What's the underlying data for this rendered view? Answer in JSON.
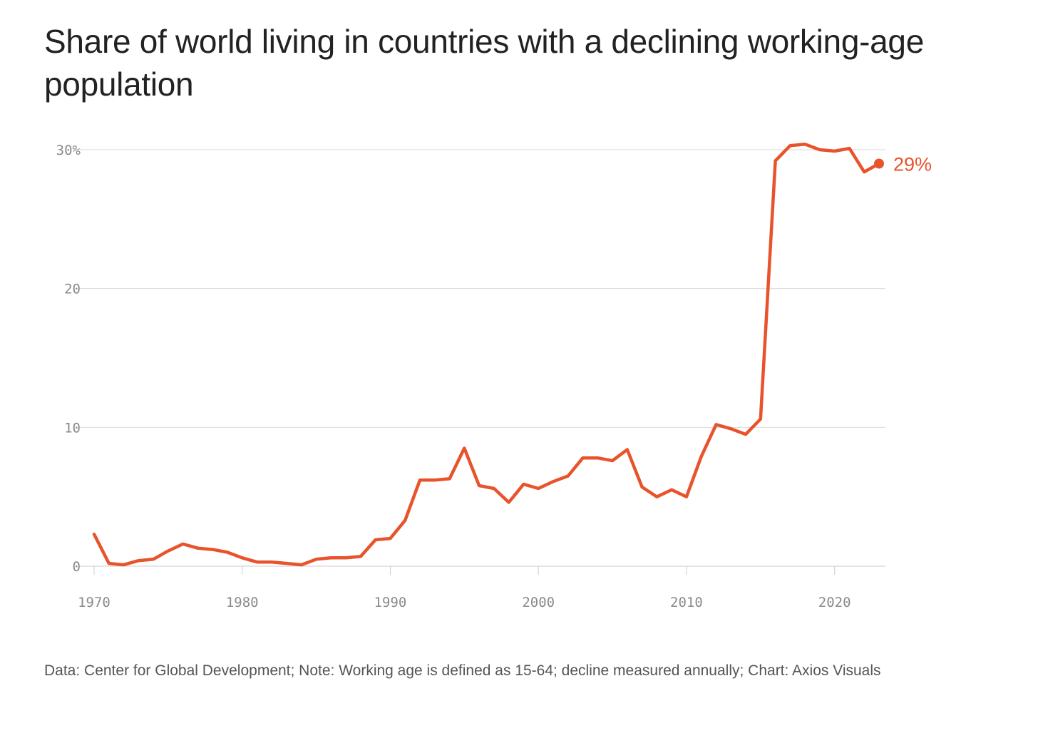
{
  "title": "Share of world living in countries with a declining working-age population",
  "footer": "Data: Center for Global Development; Note: Working age is defined as 15-64; decline measured annually; Chart: Axios Visuals",
  "colors": {
    "line": "#e8532b",
    "grid": "#d9d9d9",
    "axis": "#cccccc"
  },
  "chart_data": {
    "type": "line",
    "title": "Share of world living in countries with a declining working-age population",
    "xlabel": "",
    "ylabel": "",
    "xlim": [
      1970,
      2023
    ],
    "ylim": [
      0,
      30
    ],
    "grid": true,
    "y_ticks": [
      {
        "value": 0,
        "label": "0"
      },
      {
        "value": 10,
        "label": "10"
      },
      {
        "value": 20,
        "label": "20"
      },
      {
        "value": 30,
        "label": "30%"
      }
    ],
    "x_ticks": [
      {
        "value": 1970,
        "label": "1970"
      },
      {
        "value": 1980,
        "label": "1980"
      },
      {
        "value": 1990,
        "label": "1990"
      },
      {
        "value": 2000,
        "label": "2000"
      },
      {
        "value": 2010,
        "label": "2010"
      },
      {
        "value": 2020,
        "label": "2020"
      }
    ],
    "end_label": "29%",
    "x": [
      1970,
      1971,
      1972,
      1973,
      1974,
      1975,
      1976,
      1977,
      1978,
      1979,
      1980,
      1981,
      1982,
      1983,
      1984,
      1985,
      1986,
      1987,
      1988,
      1989,
      1990,
      1991,
      1992,
      1993,
      1994,
      1995,
      1996,
      1997,
      1998,
      1999,
      2000,
      2001,
      2002,
      2003,
      2004,
      2005,
      2006,
      2007,
      2008,
      2009,
      2010,
      2011,
      2012,
      2013,
      2014,
      2015,
      2016,
      2017,
      2018,
      2019,
      2020,
      2021,
      2022,
      2023
    ],
    "y": [
      2.3,
      0.2,
      0.1,
      0.4,
      0.5,
      1.1,
      1.6,
      1.3,
      1.2,
      1.0,
      0.6,
      0.3,
      0.3,
      0.2,
      0.1,
      0.5,
      0.6,
      0.6,
      0.7,
      1.9,
      2.0,
      3.3,
      6.2,
      6.2,
      6.3,
      8.5,
      5.8,
      5.6,
      4.6,
      5.9,
      5.6,
      6.1,
      6.5,
      7.8,
      7.8,
      7.6,
      8.4,
      5.7,
      5.0,
      5.5,
      5.0,
      7.9,
      10.2,
      9.9,
      9.5,
      10.6,
      29.2,
      30.3,
      30.4,
      30.0,
      29.9,
      30.1,
      28.4,
      29.0
    ]
  }
}
